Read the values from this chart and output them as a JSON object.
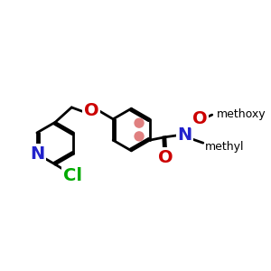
{
  "bg_color": "#ffffff",
  "bond_color": "#000000",
  "bond_width": 2.0,
  "N_color": "#2222cc",
  "O_color": "#cc0000",
  "Cl_color": "#00aa00",
  "font_size_atom": 14,
  "font_size_methyl": 12,
  "aromatic_dot_color": "#e08080",
  "aromatic_dot_r": 0.115,
  "canvas_xlim": [
    0.0,
    6.0
  ],
  "canvas_ylim": [
    0.2,
    3.5
  ]
}
